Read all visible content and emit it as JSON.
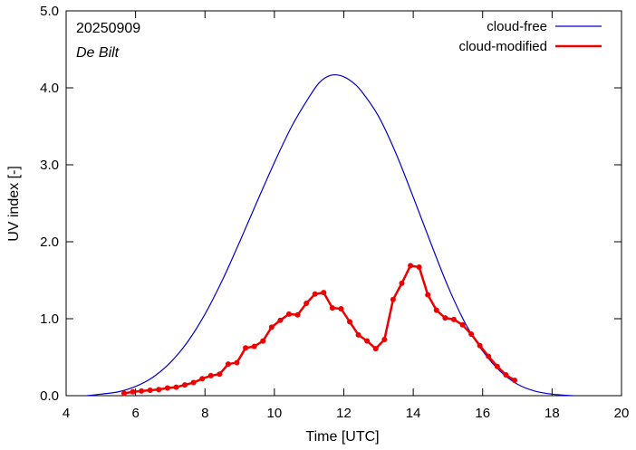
{
  "chart_data": {
    "type": "line",
    "title": "",
    "annotations": [
      "20250909",
      "De Bilt"
    ],
    "xlabel": "Time  [UTC]",
    "ylabel": "UV index  [-]",
    "xlim": [
      4,
      20
    ],
    "ylim": [
      0,
      5
    ],
    "x_ticks": [
      4,
      6,
      8,
      10,
      12,
      14,
      16,
      18,
      20
    ],
    "x_tick_labels": [
      "4",
      "6",
      "8",
      "10",
      "12",
      "14",
      "16",
      "18",
      "20"
    ],
    "y_ticks": [
      0,
      1,
      2,
      3,
      4,
      5
    ],
    "y_tick_labels": [
      "0.0",
      "1.0",
      "2.0",
      "3.0",
      "4.0",
      "5.0"
    ],
    "grid": false,
    "legend_position": "top-right",
    "series": [
      {
        "name": "cloud-free",
        "color": "#0000cc",
        "markers": false,
        "x": [
          4.6,
          5.0,
          5.5,
          6.0,
          6.5,
          7.0,
          7.5,
          8.0,
          8.5,
          9.0,
          9.5,
          10.0,
          10.5,
          11.0,
          11.3,
          11.6,
          11.9,
          12.2,
          12.5,
          13.0,
          13.5,
          14.0,
          14.5,
          15.0,
          15.5,
          16.0,
          16.5,
          17.0,
          17.5,
          18.0,
          18.6
        ],
        "y": [
          0.0,
          0.02,
          0.05,
          0.12,
          0.24,
          0.43,
          0.7,
          1.06,
          1.5,
          2.0,
          2.52,
          3.03,
          3.5,
          3.88,
          4.07,
          4.16,
          4.16,
          4.09,
          3.96,
          3.63,
          3.15,
          2.58,
          1.99,
          1.42,
          0.94,
          0.58,
          0.32,
          0.15,
          0.06,
          0.02,
          0.0
        ]
      },
      {
        "name": "cloud-modified",
        "color": "#ee0000",
        "markers": true,
        "x": [
          5.67,
          5.92,
          6.17,
          6.42,
          6.67,
          6.92,
          7.17,
          7.42,
          7.67,
          7.92,
          8.17,
          8.42,
          8.67,
          8.92,
          9.17,
          9.42,
          9.67,
          9.92,
          10.17,
          10.42,
          10.67,
          10.92,
          11.17,
          11.42,
          11.67,
          11.92,
          12.17,
          12.42,
          12.67,
          12.92,
          13.17,
          13.42,
          13.67,
          13.92,
          14.17,
          14.42,
          14.67,
          14.92,
          15.17,
          15.42,
          15.67,
          15.92,
          16.17,
          16.42,
          16.67,
          16.92
        ],
        "y": [
          0.03,
          0.05,
          0.06,
          0.07,
          0.08,
          0.1,
          0.11,
          0.14,
          0.17,
          0.22,
          0.26,
          0.28,
          0.41,
          0.43,
          0.62,
          0.64,
          0.71,
          0.89,
          0.98,
          1.06,
          1.05,
          1.2,
          1.32,
          1.34,
          1.14,
          1.13,
          0.96,
          0.79,
          0.71,
          0.61,
          0.73,
          1.25,
          1.46,
          1.69,
          1.67,
          1.31,
          1.11,
          1.01,
          0.99,
          0.92,
          0.8,
          0.65,
          0.51,
          0.38,
          0.27,
          0.2
        ]
      }
    ]
  }
}
